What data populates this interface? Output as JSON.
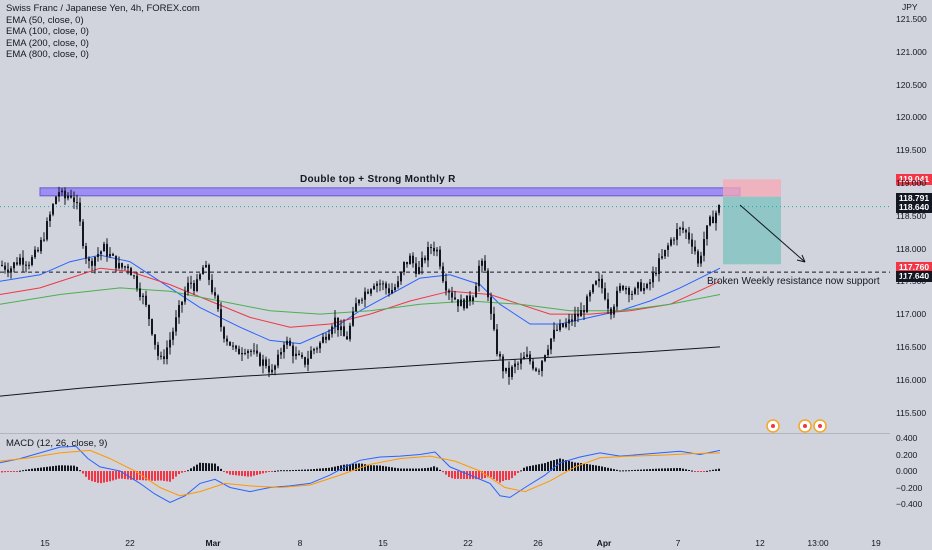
{
  "legend": {
    "symbol": "Swiss Franc / Japanese Yen, 4h, FOREX.com",
    "ema50": "EMA (50, close, 0)",
    "ema100": "EMA (100, close, 0)",
    "ema200": "EMA (200, close, 0)",
    "ema800": "EMA (800, close, 0)"
  },
  "unit_label": "JPY",
  "annotations": {
    "double_top": "Double top + Strong Monthly R",
    "support": "Broken Weekly resistance now support"
  },
  "price_tags": {
    "stop": "119.041",
    "entry_level": "118.791",
    "current": "118.640",
    "target": "117.760",
    "support": "117.640"
  },
  "colors": {
    "up": "#131722",
    "down": "#131722",
    "ema50": "#2962ff",
    "ema100": "#f23645",
    "ema200": "#4caf50",
    "ema800": "#131722",
    "zone": "#9c8ef2",
    "stop_zone": "#f7a8b4",
    "target_zone": "#7fc2c0",
    "macd": "#2962ff",
    "signal": "#ff9800",
    "hist_pos": "#131722",
    "hist_neg": "#f23645",
    "tag_red": "#f23645",
    "tag_dark": "#131722"
  },
  "chart_data": {
    "type": "candlestick",
    "title": "Swiss Franc / Japanese Yen, 4h, FOREX.com",
    "ylabel": "JPY",
    "ylim": [
      115.3,
      121.6
    ],
    "y_ticks": [
      "121.500",
      "121.000",
      "120.500",
      "120.000",
      "119.500",
      "119.000",
      "118.500",
      "118.000",
      "117.500",
      "117.000",
      "116.500",
      "116.000",
      "115.500"
    ],
    "x_ticks": [
      "15",
      "22",
      "Mar",
      "8",
      "15",
      "22",
      "26",
      "Apr",
      "7",
      "12",
      "13:00",
      "19"
    ],
    "price_path": [
      [
        0,
        117.75
      ],
      [
        10,
        117.7
      ],
      [
        20,
        117.85
      ],
      [
        30,
        117.8
      ],
      [
        38,
        117.95
      ],
      [
        46,
        118.3
      ],
      [
        52,
        118.6
      ],
      [
        58,
        118.9
      ],
      [
        64,
        118.75
      ],
      [
        70,
        118.85
      ],
      [
        76,
        118.7
      ],
      [
        82,
        118.2
      ],
      [
        88,
        117.75
      ],
      [
        96,
        117.9
      ],
      [
        104,
        118.0
      ],
      [
        112,
        117.85
      ],
      [
        120,
        117.7
      ],
      [
        128,
        117.75
      ],
      [
        136,
        117.5
      ],
      [
        144,
        117.2
      ],
      [
        150,
        116.9
      ],
      [
        156,
        116.5
      ],
      [
        160,
        116.25
      ],
      [
        166,
        116.45
      ],
      [
        172,
        116.7
      ],
      [
        178,
        117.0
      ],
      [
        184,
        117.3
      ],
      [
        190,
        117.5
      ],
      [
        196,
        117.4
      ],
      [
        204,
        117.75
      ],
      [
        210,
        117.5
      ],
      [
        216,
        117.15
      ],
      [
        222,
        116.75
      ],
      [
        228,
        116.6
      ],
      [
        236,
        116.4
      ],
      [
        244,
        116.5
      ],
      [
        250,
        116.45
      ],
      [
        258,
        116.3
      ],
      [
        266,
        116.25
      ],
      [
        272,
        116.1
      ],
      [
        278,
        116.3
      ],
      [
        284,
        116.6
      ],
      [
        290,
        116.5
      ],
      [
        296,
        116.35
      ],
      [
        304,
        116.25
      ],
      [
        312,
        116.45
      ],
      [
        320,
        116.55
      ],
      [
        328,
        116.75
      ],
      [
        334,
        116.95
      ],
      [
        340,
        116.75
      ],
      [
        346,
        116.6
      ],
      [
        352,
        116.9
      ],
      [
        358,
        117.25
      ],
      [
        366,
        117.35
      ],
      [
        374,
        117.5
      ],
      [
        382,
        117.45
      ],
      [
        390,
        117.35
      ],
      [
        398,
        117.45
      ],
      [
        404,
        117.75
      ],
      [
        410,
        117.85
      ],
      [
        418,
        117.65
      ],
      [
        426,
        117.9
      ],
      [
        432,
        118.05
      ],
      [
        438,
        117.95
      ],
      [
        444,
        117.5
      ],
      [
        452,
        117.3
      ],
      [
        460,
        117.15
      ],
      [
        468,
        117.2
      ],
      [
        474,
        117.35
      ],
      [
        480,
        117.8
      ],
      [
        486,
        117.6
      ],
      [
        490,
        117.05
      ],
      [
        496,
        116.5
      ],
      [
        502,
        116.2
      ],
      [
        508,
        116.05
      ],
      [
        514,
        116.2
      ],
      [
        520,
        116.25
      ],
      [
        526,
        116.35
      ],
      [
        532,
        116.25
      ],
      [
        538,
        116.15
      ],
      [
        544,
        116.4
      ],
      [
        550,
        116.6
      ],
      [
        556,
        116.75
      ],
      [
        562,
        116.8
      ],
      [
        568,
        116.85
      ],
      [
        574,
        116.95
      ],
      [
        580,
        117.0
      ],
      [
        586,
        117.15
      ],
      [
        592,
        117.35
      ],
      [
        598,
        117.5
      ],
      [
        604,
        117.35
      ],
      [
        610,
        117.05
      ],
      [
        616,
        117.25
      ],
      [
        622,
        117.45
      ],
      [
        628,
        117.4
      ],
      [
        634,
        117.3
      ],
      [
        640,
        117.45
      ],
      [
        646,
        117.35
      ],
      [
        652,
        117.55
      ],
      [
        658,
        117.75
      ],
      [
        664,
        117.9
      ],
      [
        670,
        118.1
      ],
      [
        676,
        118.25
      ],
      [
        682,
        118.3
      ],
      [
        688,
        118.2
      ],
      [
        694,
        118.05
      ],
      [
        698,
        117.75
      ],
      [
        704,
        118.15
      ],
      [
        710,
        118.4
      ],
      [
        716,
        118.55
      ],
      [
        720,
        118.64
      ]
    ],
    "series": [
      {
        "name": "EMA (50, close, 0)",
        "points": [
          [
            0,
            117.5
          ],
          [
            40,
            117.6
          ],
          [
            70,
            117.8
          ],
          [
            100,
            117.9
          ],
          [
            130,
            117.8
          ],
          [
            160,
            117.5
          ],
          [
            200,
            117.1
          ],
          [
            240,
            116.8
          ],
          [
            270,
            116.6
          ],
          [
            300,
            116.55
          ],
          [
            330,
            116.75
          ],
          [
            360,
            117.05
          ],
          [
            390,
            117.3
          ],
          [
            420,
            117.55
          ],
          [
            450,
            117.6
          ],
          [
            480,
            117.45
          ],
          [
            500,
            117.15
          ],
          [
            530,
            116.85
          ],
          [
            560,
            116.85
          ],
          [
            590,
            116.95
          ],
          [
            620,
            117.05
          ],
          [
            650,
            117.2
          ],
          [
            680,
            117.4
          ],
          [
            720,
            117.7
          ]
        ]
      },
      {
        "name": "EMA (100, close, 0)",
        "points": [
          [
            0,
            117.3
          ],
          [
            40,
            117.4
          ],
          [
            70,
            117.55
          ],
          [
            100,
            117.7
          ],
          [
            130,
            117.65
          ],
          [
            170,
            117.45
          ],
          [
            210,
            117.2
          ],
          [
            250,
            116.95
          ],
          [
            290,
            116.8
          ],
          [
            330,
            116.85
          ],
          [
            370,
            117.0
          ],
          [
            410,
            117.2
          ],
          [
            450,
            117.35
          ],
          [
            490,
            117.3
          ],
          [
            520,
            117.15
          ],
          [
            550,
            117.0
          ],
          [
            590,
            117.0
          ],
          [
            630,
            117.05
          ],
          [
            670,
            117.15
          ],
          [
            720,
            117.5
          ]
        ]
      },
      {
        "name": "EMA (200, close, 0)",
        "points": [
          [
            0,
            117.15
          ],
          [
            60,
            117.3
          ],
          [
            120,
            117.4
          ],
          [
            170,
            117.35
          ],
          [
            220,
            117.2
          ],
          [
            270,
            117.05
          ],
          [
            320,
            117.0
          ],
          [
            370,
            117.05
          ],
          [
            420,
            117.15
          ],
          [
            470,
            117.2
          ],
          [
            520,
            117.15
          ],
          [
            570,
            117.05
          ],
          [
            620,
            117.05
          ],
          [
            670,
            117.15
          ],
          [
            720,
            117.3
          ]
        ]
      },
      {
        "name": "EMA (800, close, 0)",
        "points": [
          [
            0,
            115.75
          ],
          [
            80,
            115.87
          ],
          [
            160,
            115.97
          ],
          [
            240,
            116.05
          ],
          [
            320,
            116.12
          ],
          [
            400,
            116.2
          ],
          [
            480,
            116.28
          ],
          [
            560,
            116.35
          ],
          [
            640,
            116.42
          ],
          [
            720,
            116.5
          ]
        ]
      }
    ],
    "levels": {
      "double_top_zone": [
        118.8,
        118.88
      ],
      "support": 117.64,
      "current": 118.64
    },
    "position": {
      "type": "short",
      "entry": 118.791,
      "stop": 119.041,
      "target": 117.76
    },
    "macd": {
      "title": "MACD (12, 26, close, 9)",
      "ylim": [
        -0.48,
        0.42
      ],
      "y_ticks": [
        "0.400",
        "0.200",
        "0.000",
        "−0.200",
        "−0.400"
      ],
      "macd_path": [
        [
          0,
          0.1
        ],
        [
          20,
          0.15
        ],
        [
          40,
          0.22
        ],
        [
          60,
          0.29
        ],
        [
          76,
          0.3
        ],
        [
          88,
          0.15
        ],
        [
          100,
          0.05
        ],
        [
          120,
          0.0
        ],
        [
          140,
          -0.15
        ],
        [
          155,
          -0.28
        ],
        [
          170,
          -0.38
        ],
        [
          185,
          -0.3
        ],
        [
          200,
          -0.15
        ],
        [
          215,
          -0.1
        ],
        [
          230,
          -0.2
        ],
        [
          250,
          -0.25
        ],
        [
          270,
          -0.2
        ],
        [
          290,
          -0.18
        ],
        [
          310,
          -0.15
        ],
        [
          330,
          -0.05
        ],
        [
          345,
          0.05
        ],
        [
          360,
          0.13
        ],
        [
          380,
          0.17
        ],
        [
          400,
          0.18
        ],
        [
          420,
          0.2
        ],
        [
          435,
          0.23
        ],
        [
          450,
          0.05
        ],
        [
          470,
          -0.05
        ],
        [
          490,
          -0.15
        ],
        [
          500,
          -0.3
        ],
        [
          510,
          -0.32
        ],
        [
          525,
          -0.2
        ],
        [
          545,
          -0.05
        ],
        [
          560,
          0.1
        ],
        [
          580,
          0.17
        ],
        [
          600,
          0.22
        ],
        [
          620,
          0.18
        ],
        [
          640,
          0.2
        ],
        [
          660,
          0.22
        ],
        [
          680,
          0.24
        ],
        [
          700,
          0.2
        ],
        [
          720,
          0.25
        ]
      ],
      "signal_path": [
        [
          0,
          0.12
        ],
        [
          30,
          0.16
        ],
        [
          60,
          0.22
        ],
        [
          90,
          0.25
        ],
        [
          110,
          0.15
        ],
        [
          135,
          0.0
        ],
        [
          160,
          -0.2
        ],
        [
          180,
          -0.3
        ],
        [
          200,
          -0.25
        ],
        [
          225,
          -0.15
        ],
        [
          250,
          -0.18
        ],
        [
          280,
          -0.2
        ],
        [
          310,
          -0.17
        ],
        [
          340,
          -0.05
        ],
        [
          370,
          0.08
        ],
        [
          400,
          0.15
        ],
        [
          430,
          0.18
        ],
        [
          455,
          0.12
        ],
        [
          480,
          0.0
        ],
        [
          505,
          -0.2
        ],
        [
          525,
          -0.25
        ],
        [
          550,
          -0.12
        ],
        [
          575,
          0.05
        ],
        [
          600,
          0.16
        ],
        [
          630,
          0.18
        ],
        [
          660,
          0.19
        ],
        [
          690,
          0.21
        ],
        [
          720,
          0.22
        ]
      ]
    }
  }
}
